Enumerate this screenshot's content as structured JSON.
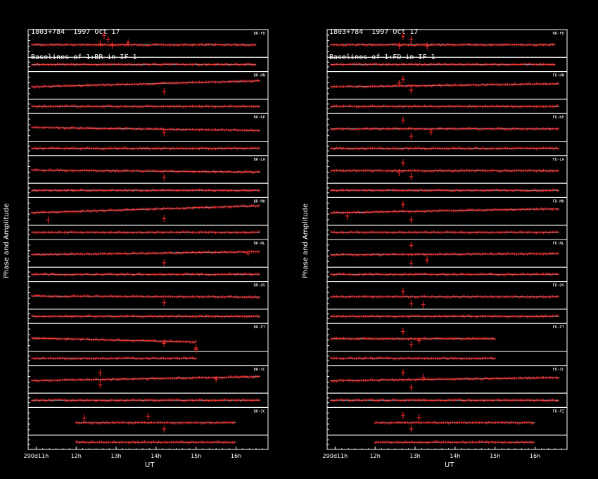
{
  "chart_data": [
    {
      "type": "scatter",
      "source": "1803+784",
      "date": "1997 Oct 17",
      "subtitle": "Baselines of 1:BR in IF 1",
      "ylabel": "Phase and Amplitude",
      "xlabel": "UT",
      "x_ticks": [
        "290d11h",
        "12h",
        "13h",
        "14h",
        "15h",
        "16h"
      ],
      "xlim_hours": [
        10.8,
        16.8
      ],
      "baselines": [
        {
          "name": "BR-FD",
          "amp_base": 1.0,
          "amp_drift": 0.0,
          "start": 10.9,
          "end": 16.5,
          "gaps": [],
          "outliers": [
            {
              "t": 12.7,
              "v": 2.8
            },
            {
              "t": 12.8,
              "v": 1.6
            },
            {
              "t": 12.6,
              "v": 0.3
            },
            {
              "t": 12.9,
              "v": -0.2
            },
            {
              "t": 13.3,
              "v": 0.6
            }
          ]
        },
        {
          "name": "BR-HN",
          "amp_base": 1.0,
          "amp_drift": 0.6,
          "start": 10.9,
          "end": 16.6,
          "gaps": [],
          "outliers": [
            {
              "t": 14.2,
              "v": -1.4
            }
          ]
        },
        {
          "name": "BR-KP",
          "amp_base": 1.2,
          "amp_drift": -0.3,
          "start": 10.9,
          "end": 16.6,
          "gaps": [],
          "outliers": [
            {
              "t": 14.2,
              "v": -1.2
            }
          ]
        },
        {
          "name": "BR-LA",
          "amp_base": 1.1,
          "amp_drift": -0.2,
          "start": 10.9,
          "end": 16.6,
          "gaps": [],
          "outliers": [
            {
              "t": 14.2,
              "v": -2.0
            }
          ]
        },
        {
          "name": "BR-MK",
          "amp_base": 1.0,
          "amp_drift": 0.7,
          "start": 10.9,
          "end": 16.6,
          "gaps": [],
          "outliers": [
            {
              "t": 14.2,
              "v": -1.8
            },
            {
              "t": 11.3,
              "v": -2.2
            }
          ]
        },
        {
          "name": "BR-NL",
          "amp_base": 1.0,
          "amp_drift": 0.3,
          "start": 10.9,
          "end": 16.6,
          "gaps": [],
          "outliers": [
            {
              "t": 14.2,
              "v": -2.4
            },
            {
              "t": 16.3,
              "v": 0.4
            }
          ]
        },
        {
          "name": "BR-OV",
          "amp_base": 1.1,
          "amp_drift": -0.1,
          "start": 10.9,
          "end": 16.6,
          "gaps": [],
          "outliers": [
            {
              "t": 14.2,
              "v": -1.8
            }
          ]
        },
        {
          "name": "BR-PT",
          "amp_base": 1.1,
          "amp_drift": -0.4,
          "start": 10.9,
          "end": 15.0,
          "gaps": [],
          "outliers": [
            {
              "t": 14.2,
              "v": -1.4
            },
            {
              "t": 15.0,
              "v": -3.3
            },
            {
              "t": 15.0,
              "v": -2.8
            }
          ]
        },
        {
          "name": "BR-SC",
          "amp_base": 1.0,
          "amp_drift": 0.4,
          "start": 10.9,
          "end": 16.6,
          "gaps": [],
          "outliers": [
            {
              "t": 12.6,
              "v": 2.3
            },
            {
              "t": 12.6,
              "v": -1.2
            },
            {
              "t": 15.5,
              "v": 0.5
            }
          ]
        },
        {
          "name": "BR-SC",
          "amp_base": 1.0,
          "amp_drift": 0.0,
          "start": 12.0,
          "end": 16.0,
          "gaps": [],
          "outliers": [
            {
              "t": 12.2,
              "v": 1.4
            },
            {
              "t": 13.8,
              "v": 1.9
            },
            {
              "t": 14.2,
              "v": -1.9
            }
          ]
        }
      ]
    },
    {
      "type": "scatter",
      "source": "1803+784",
      "date": "1997 Oct 17",
      "subtitle": "Baselines of 1:FD in IF 1",
      "ylabel": "Phase and Amplitude",
      "xlabel": "UT",
      "x_ticks": [
        "290d11h",
        "12h",
        "13h",
        "14h",
        "15h",
        "16h"
      ],
      "xlim_hours": [
        10.8,
        16.8
      ],
      "baselines": [
        {
          "name": "BR-FD",
          "amp_base": 1.0,
          "amp_drift": 0.0,
          "start": 10.9,
          "end": 16.5,
          "gaps": [],
          "outliers": [
            {
              "t": 12.7,
              "v": 2.6
            },
            {
              "t": 12.9,
              "v": 1.5
            },
            {
              "t": 12.6,
              "v": -0.3
            },
            {
              "t": 13.3,
              "v": -0.4
            }
          ]
        },
        {
          "name": "FD-HN",
          "amp_base": 1.0,
          "amp_drift": 0.3,
          "start": 10.9,
          "end": 16.6,
          "gaps": [],
          "outliers": [
            {
              "t": 12.7,
              "v": 2.3
            },
            {
              "t": 12.9,
              "v": -1.0
            },
            {
              "t": 12.6,
              "v": 1.1
            }
          ]
        },
        {
          "name": "FD-KP",
          "amp_base": 1.0,
          "amp_drift": 0.0,
          "start": 10.9,
          "end": 16.6,
          "gaps": [],
          "outliers": [
            {
              "t": 12.7,
              "v": 2.6
            },
            {
              "t": 12.9,
              "v": -2.2
            },
            {
              "t": 13.4,
              "v": -1.0
            }
          ]
        },
        {
          "name": "FD-LA",
          "amp_base": 1.0,
          "amp_drift": 0.0,
          "start": 10.9,
          "end": 16.6,
          "gaps": [],
          "outliers": [
            {
              "t": 12.7,
              "v": 2.4
            },
            {
              "t": 12.9,
              "v": -1.8
            },
            {
              "t": 12.6,
              "v": -0.6
            }
          ]
        },
        {
          "name": "FD-MK",
          "amp_base": 1.0,
          "amp_drift": 0.4,
          "start": 10.9,
          "end": 16.6,
          "gaps": [],
          "outliers": [
            {
              "t": 12.7,
              "v": 2.5
            },
            {
              "t": 12.9,
              "v": -2.1
            },
            {
              "t": 11.3,
              "v": -1.0
            }
          ]
        },
        {
          "name": "FD-NL",
          "amp_base": 1.0,
          "amp_drift": 0.1,
          "start": 10.9,
          "end": 16.6,
          "gaps": [],
          "outliers": [
            {
              "t": 12.9,
              "v": 2.8
            },
            {
              "t": 12.9,
              "v": -2.6
            },
            {
              "t": 13.3,
              "v": -1.6
            }
          ]
        },
        {
          "name": "FD-OV",
          "amp_base": 1.0,
          "amp_drift": 0.0,
          "start": 10.9,
          "end": 16.6,
          "gaps": [],
          "outliers": [
            {
              "t": 12.7,
              "v": 1.6
            },
            {
              "t": 12.9,
              "v": -2.1
            },
            {
              "t": 13.2,
              "v": -2.4
            }
          ]
        },
        {
          "name": "FD-PT",
          "amp_base": 1.0,
          "amp_drift": 0.0,
          "start": 10.9,
          "end": 15.0,
          "gaps": [],
          "outliers": [
            {
              "t": 12.7,
              "v": 2.2
            },
            {
              "t": 12.9,
              "v": -1.8
            },
            {
              "t": 13.1,
              "v": -0.6
            }
          ]
        },
        {
          "name": "FD-SC",
          "amp_base": 1.0,
          "amp_drift": 0.3,
          "start": 10.9,
          "end": 16.6,
          "gaps": [],
          "outliers": [
            {
              "t": 12.7,
              "v": 2.4
            },
            {
              "t": 12.9,
              "v": -2.0
            },
            {
              "t": 13.2,
              "v": 1.0
            }
          ]
        },
        {
          "name": "FD-PZ",
          "amp_base": 1.0,
          "amp_drift": 0.0,
          "start": 12.0,
          "end": 16.0,
          "gaps": [],
          "outliers": [
            {
              "t": 12.7,
              "v": 2.2
            },
            {
              "t": 12.9,
              "v": -1.9
            },
            {
              "t": 13.1,
              "v": 1.5
            }
          ]
        }
      ]
    }
  ],
  "colors": {
    "background": "#000000",
    "frame": "#ffffff",
    "data": "#ff2a2a",
    "model": "#35d0e0",
    "text": "#ffffff"
  }
}
